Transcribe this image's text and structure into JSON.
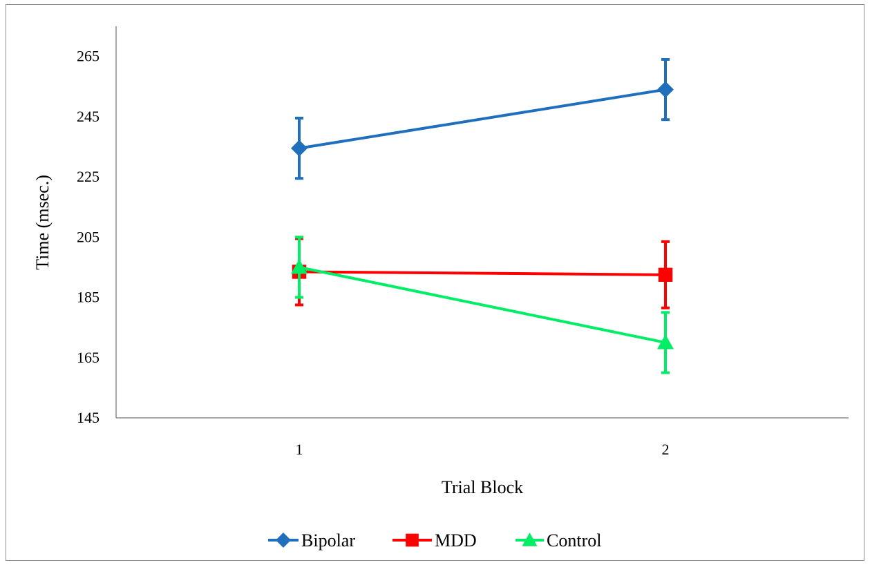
{
  "chart_data": {
    "type": "line",
    "title": "",
    "xlabel": "Trial Block",
    "ylabel": "Time (msec.)",
    "categories": [
      "1",
      "2"
    ],
    "ylim": [
      145,
      275
    ],
    "yticks": [
      145,
      165,
      185,
      205,
      225,
      245,
      265
    ],
    "legend_position": "bottom",
    "series": [
      {
        "name": "Bipolar",
        "color": "#1f6fbd",
        "marker": "diamond",
        "values": [
          234.5,
          254
        ],
        "error": [
          10,
          10
        ]
      },
      {
        "name": "MDD",
        "color": "#ff0000",
        "marker": "square",
        "values": [
          193.5,
          192.5
        ],
        "error": [
          11,
          11
        ]
      },
      {
        "name": "Control",
        "color": "#00ee66",
        "marker": "triangle",
        "values": [
          195,
          170
        ],
        "error": [
          10,
          10
        ]
      }
    ]
  }
}
